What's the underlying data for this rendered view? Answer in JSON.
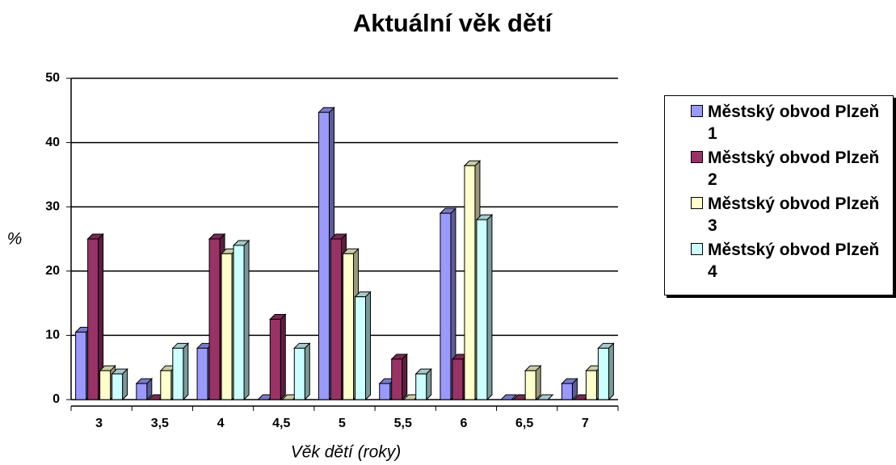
{
  "chart_data": {
    "type": "bar3d",
    "title": "Aktuální věk dětí",
    "x_label": "Věk dětí (roky)",
    "y_label": "%",
    "categories": [
      "3",
      "3,5",
      "4",
      "4,5",
      "5",
      "5,5",
      "6",
      "6,5",
      "7"
    ],
    "series": [
      {
        "name": "Městský obvod Plzeň 1",
        "color": "#9999ff",
        "values": [
          10.5,
          2.5,
          8,
          0,
          44.7,
          2.5,
          29,
          0,
          2.5
        ]
      },
      {
        "name": "Městský obvod Plzeň 2",
        "color": "#993366",
        "values": [
          25,
          0,
          25,
          12.5,
          25,
          6.3,
          6.3,
          0,
          0
        ]
      },
      {
        "name": "Městský obvod Plzeň 3",
        "color": "#ffffcc",
        "values": [
          4.5,
          4.5,
          22.7,
          0,
          22.7,
          0,
          36.4,
          4.5,
          4.5
        ]
      },
      {
        "name": "Městský obvod Plzeň 4",
        "color": "#ccffff",
        "values": [
          4,
          8,
          24,
          8,
          16,
          4,
          28,
          0,
          8
        ]
      }
    ],
    "ylim": [
      0,
      50
    ],
    "yticks": [
      0,
      10,
      20,
      30,
      40,
      50
    ],
    "grid": true,
    "legend": "right"
  }
}
